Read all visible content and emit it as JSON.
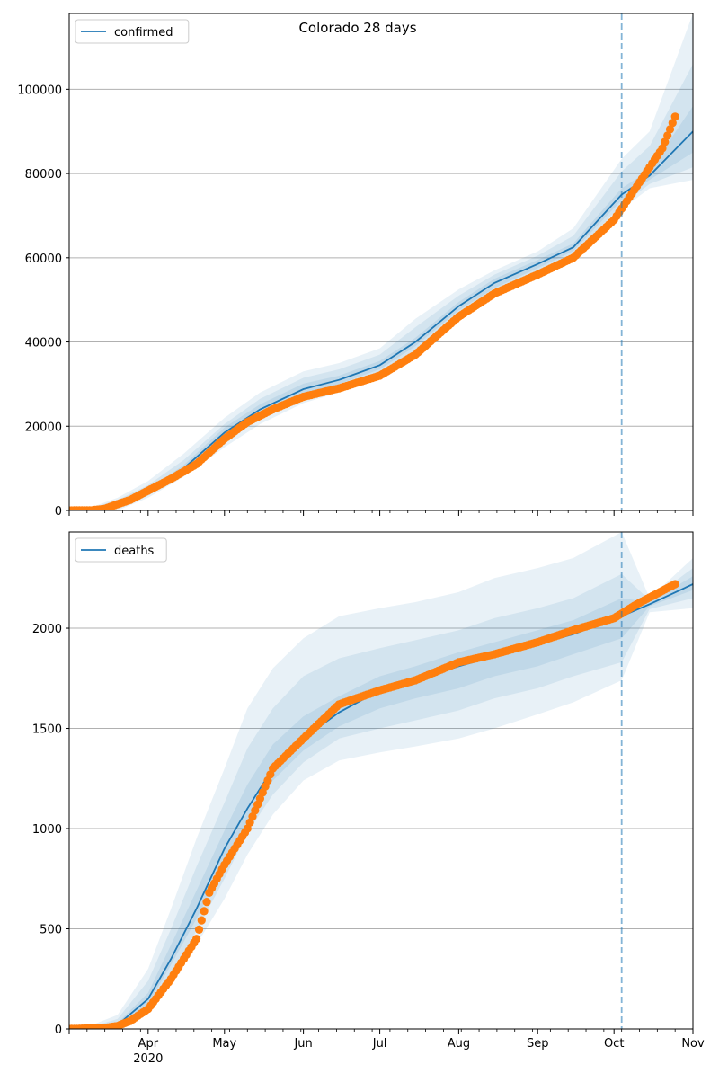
{
  "chart_data": {
    "type": "line",
    "title": "Colorado 28 days",
    "x_tick_labels": [
      "Apr",
      "May",
      "Jun",
      "Jul",
      "Aug",
      "Sep",
      "Oct",
      "Nov"
    ],
    "x_year_label": "2020",
    "forecast_start": "2020-10-04",
    "colors": {
      "model": "#1f77b4",
      "observed": "#ff7f0e",
      "band": "#1f77b4",
      "grid": "#b0b0b0"
    },
    "panels": [
      {
        "legend": "confirmed",
        "legend_position": "top-left",
        "ylim": [
          0,
          118000
        ],
        "y_ticks": [
          0,
          20000,
          40000,
          60000,
          80000,
          100000
        ],
        "grid": "horizontal",
        "model": {
          "dates": [
            "2020-03-01",
            "2020-03-10",
            "2020-03-20",
            "2020-04-01",
            "2020-04-15",
            "2020-05-01",
            "2020-05-15",
            "2020-06-01",
            "2020-06-15",
            "2020-07-01",
            "2020-07-15",
            "2020-08-01",
            "2020-08-15",
            "2020-09-01",
            "2020-09-15",
            "2020-10-04",
            "2020-10-15",
            "2020-11-01"
          ],
          "values": [
            0,
            300,
            1500,
            4500,
            10000,
            18500,
            24000,
            28800,
            31000,
            34500,
            40000,
            48500,
            54000,
            58500,
            62500,
            75000,
            79500,
            90000
          ]
        },
        "bands": [
          {
            "lower": [
              0,
              0,
              0,
              3000,
              8000,
              15000,
              20500,
              25500,
              28000,
              31500,
              37000,
              45000,
              50500,
              55500,
              60000,
              71500,
              76500,
              78500
            ],
            "upper": [
              0,
              800,
              3000,
              7000,
              13500,
              22000,
              28000,
              33000,
              35000,
              38500,
              45500,
              52500,
              57000,
              61500,
              67000,
              83500,
              90000,
              118000
            ]
          },
          {
            "lower": [
              0,
              0,
              500,
              3500,
              8800,
              16200,
              21800,
              26500,
              29000,
              32500,
              38200,
              46500,
              51800,
              56500,
              60800,
              72500,
              77500,
              81500
            ],
            "upper": [
              0,
              600,
              2500,
              6000,
              12000,
              20500,
              26500,
              31500,
              33500,
              37000,
              43500,
              51000,
              56000,
              60500,
              65200,
              80500,
              86500,
              106000
            ]
          },
          {
            "lower": [
              0,
              100,
              1000,
              4000,
              9300,
              17300,
              22900,
              27500,
              30000,
              33500,
              39000,
              47500,
              52800,
              57500,
              61600,
              73700,
              78500,
              85000
            ],
            "upper": [
              0,
              450,
              2000,
              5000,
              10800,
              19700,
              25200,
              30100,
              32000,
              35500,
              41000,
              49500,
              55000,
              59500,
              63400,
              76500,
              80800,
              96000
            ]
          }
        ],
        "observed": {
          "dates": [
            "2020-03-01",
            "2020-03-10",
            "2020-03-15",
            "2020-03-20",
            "2020-03-25",
            "2020-04-01",
            "2020-04-10",
            "2020-04-20",
            "2020-05-01",
            "2020-05-10",
            "2020-05-20",
            "2020-06-01",
            "2020-06-15",
            "2020-07-01",
            "2020-07-15",
            "2020-08-01",
            "2020-08-15",
            "2020-09-01",
            "2020-09-15",
            "2020-10-01",
            "2020-10-10",
            "2020-10-20",
            "2020-10-25"
          ],
          "values": [
            0,
            50,
            400,
            1500,
            2500,
            4700,
            7500,
            11000,
            17000,
            21000,
            24000,
            27000,
            29000,
            32000,
            37000,
            46000,
            51500,
            56000,
            60000,
            69000,
            77000,
            86000,
            93500
          ]
        }
      },
      {
        "legend": "deaths",
        "legend_position": "top-left",
        "ylim": [
          0,
          2480
        ],
        "y_ticks": [
          0,
          500,
          1000,
          1500,
          2000
        ],
        "grid": "horizontal",
        "model": {
          "dates": [
            "2020-03-01",
            "2020-03-10",
            "2020-03-20",
            "2020-04-01",
            "2020-04-10",
            "2020-04-20",
            "2020-05-01",
            "2020-05-10",
            "2020-05-20",
            "2020-06-01",
            "2020-06-15",
            "2020-07-01",
            "2020-07-15",
            "2020-08-01",
            "2020-08-15",
            "2020-09-01",
            "2020-09-15",
            "2020-10-04",
            "2020-10-15",
            "2020-11-01"
          ],
          "values": [
            0,
            5,
            20,
            150,
            350,
            600,
            900,
            1100,
            1300,
            1450,
            1580,
            1690,
            1740,
            1810,
            1860,
            1920,
            1970,
            2060,
            2120,
            2220
          ]
        },
        "bands": [
          {
            "lower": [
              0,
              0,
              10,
              80,
              220,
              420,
              650,
              870,
              1070,
              1240,
              1340,
              1380,
              1410,
              1450,
              1500,
              1570,
              1630,
              1740,
              2080,
              2100
            ],
            "upper": [
              0,
              20,
              70,
              300,
              600,
              950,
              1300,
              1600,
              1800,
              1950,
              2060,
              2100,
              2130,
              2180,
              2250,
              2300,
              2350,
              2480,
              2150,
              2350
            ]
          },
          {
            "lower": [
              0,
              0,
              15,
              100,
              270,
              490,
              750,
              980,
              1170,
              1330,
              1450,
              1500,
              1540,
              1590,
              1650,
              1700,
              1760,
              1830,
              2095,
              2150
            ],
            "upper": [
              0,
              12,
              50,
              240,
              500,
              810,
              1130,
              1400,
              1600,
              1760,
              1850,
              1900,
              1940,
              1990,
              2050,
              2100,
              2150,
              2270,
              2140,
              2300
            ]
          },
          {
            "lower": [
              0,
              2,
              18,
              125,
              320,
              550,
              830,
              1040,
              1240,
              1390,
              1510,
              1600,
              1650,
              1700,
              1760,
              1810,
              1870,
              1950,
              2110,
              2190
            ],
            "upper": [
              0,
              8,
              30,
              180,
              420,
              690,
              990,
              1220,
              1420,
              1560,
              1660,
              1760,
              1810,
              1880,
              1930,
              1990,
              2040,
              2150,
              2130,
              2260
            ]
          }
        ],
        "observed": {
          "dates": [
            "2020-03-01",
            "2020-03-15",
            "2020-03-20",
            "2020-03-25",
            "2020-04-01",
            "2020-04-10",
            "2020-04-20",
            "2020-04-25",
            "2020-05-01",
            "2020-05-10",
            "2020-05-20",
            "2020-06-01",
            "2020-06-15",
            "2020-07-01",
            "2020-07-15",
            "2020-08-01",
            "2020-08-15",
            "2020-09-01",
            "2020-09-15",
            "2020-10-01",
            "2020-10-10",
            "2020-10-25"
          ],
          "values": [
            0,
            5,
            15,
            40,
            100,
            250,
            450,
            680,
            820,
            1000,
            1300,
            1450,
            1620,
            1690,
            1740,
            1830,
            1870,
            1930,
            1990,
            2050,
            2120,
            2220
          ]
        }
      }
    ]
  }
}
